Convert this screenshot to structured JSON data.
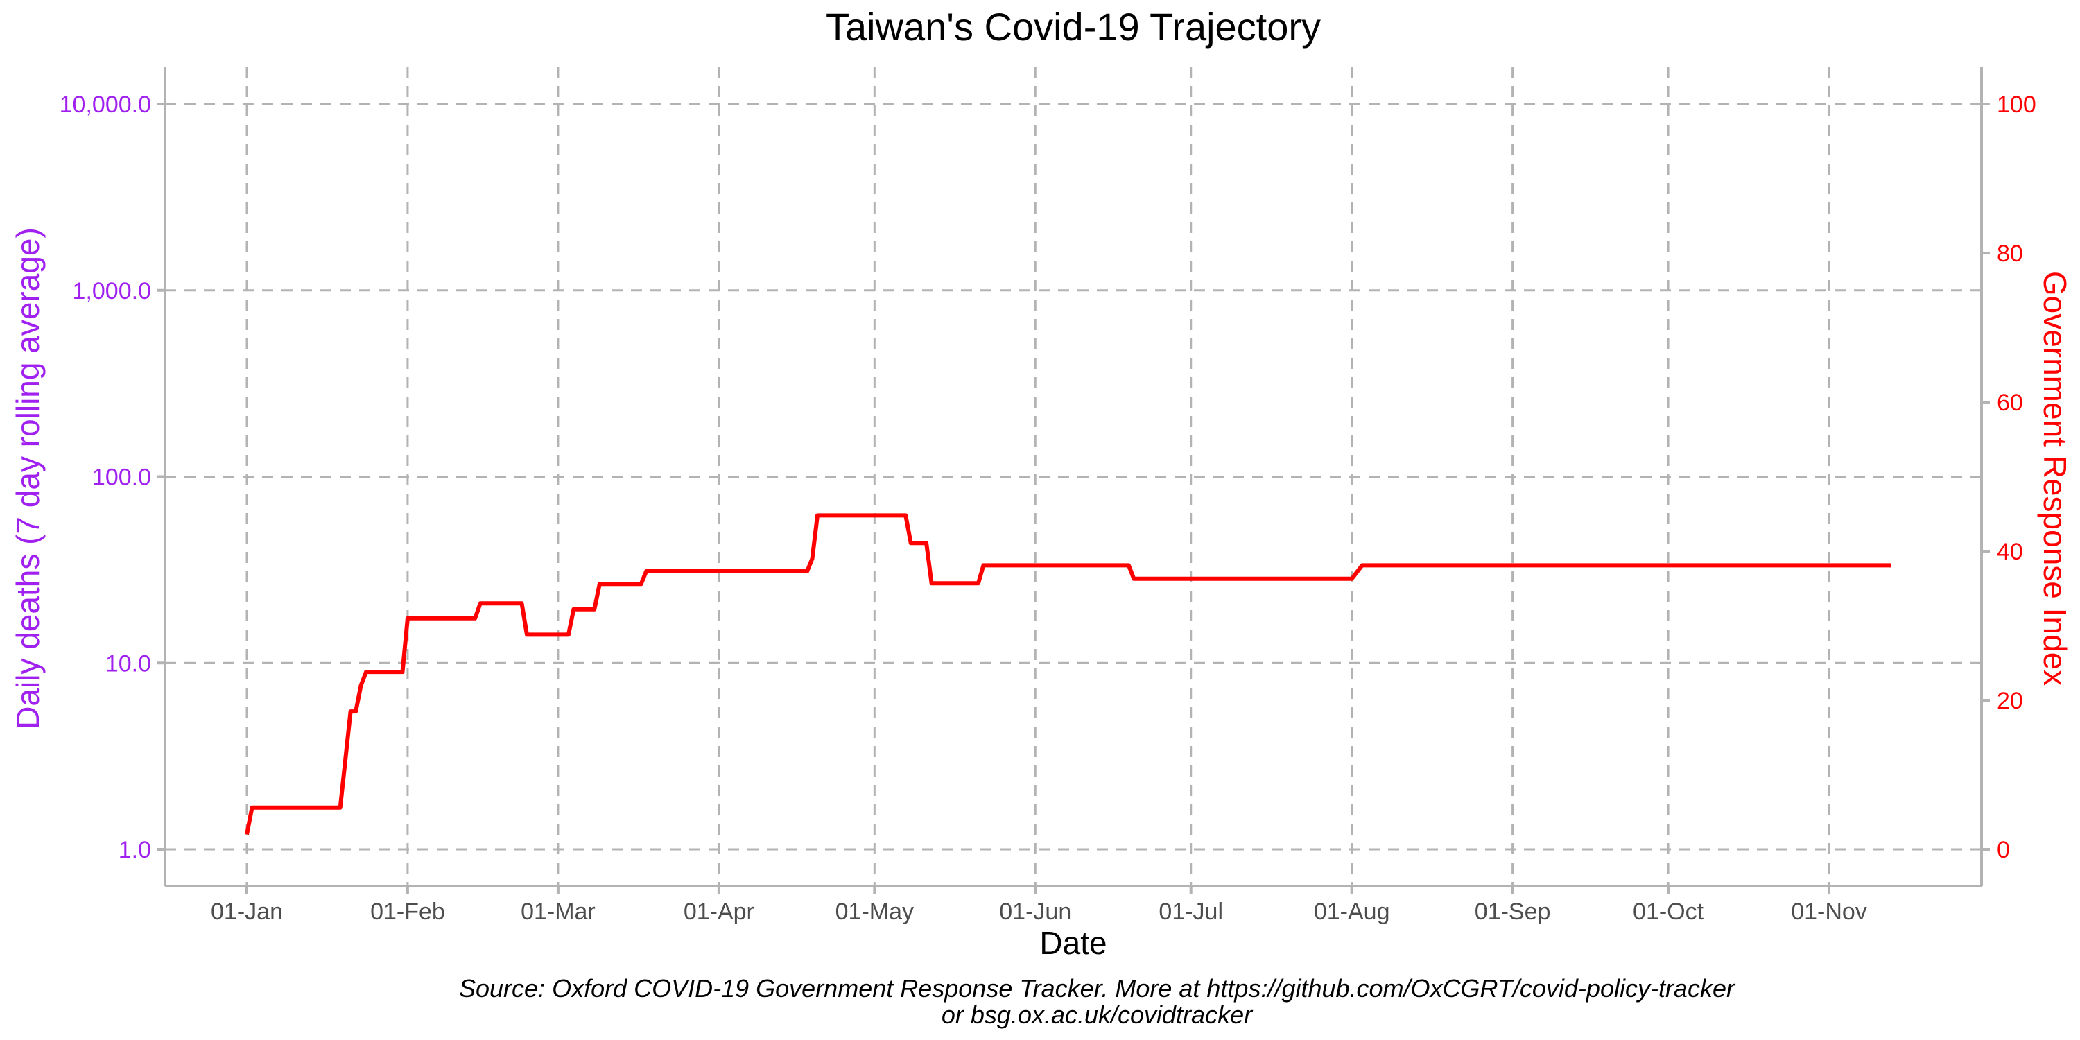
{
  "chart_data": {
    "type": "line",
    "title": "Taiwan's Covid-19 Trajectory",
    "xlabel": "Date",
    "ylabel_left": "Daily deaths (7 day rolling average)",
    "ylabel_right": "Government Response Index",
    "y_left_scale": "log10",
    "y_left_range": [
      1,
      10000
    ],
    "y_left_ticks": [
      "1.0",
      "10.0",
      "100.0",
      "1,000.0",
      "10,000.0"
    ],
    "y_right_range": [
      0,
      100
    ],
    "y_right_ticks": [
      "0",
      "20",
      "40",
      "60",
      "80",
      "100"
    ],
    "x_range": [
      "2020-01-01",
      "2020-11-15"
    ],
    "x_ticks": [
      {
        "date": "2020-01-01",
        "label": "01-Jan"
      },
      {
        "date": "2020-02-01",
        "label": "01-Feb"
      },
      {
        "date": "2020-03-01",
        "label": "01-Mar"
      },
      {
        "date": "2020-04-01",
        "label": "01-Apr"
      },
      {
        "date": "2020-05-01",
        "label": "01-May"
      },
      {
        "date": "2020-06-01",
        "label": "01-Jun"
      },
      {
        "date": "2020-07-01",
        "label": "01-Jul"
      },
      {
        "date": "2020-08-01",
        "label": "01-Aug"
      },
      {
        "date": "2020-09-01",
        "label": "01-Sep"
      },
      {
        "date": "2020-10-01",
        "label": "01-Oct"
      },
      {
        "date": "2020-11-01",
        "label": "01-Nov"
      }
    ],
    "grid": true,
    "colors": {
      "left_axis": "#a020f0",
      "right_axis": "#ff0000",
      "series": "#ff0000",
      "grid": "#b3b3b3"
    },
    "series": [
      {
        "axis": "right",
        "color": "#ff0000",
        "points": [
          [
            "2020-01-01",
            2
          ],
          [
            "2020-01-02",
            5.6
          ],
          [
            "2020-01-19",
            5.6
          ],
          [
            "2020-01-21",
            18.5
          ],
          [
            "2020-01-22",
            18.5
          ],
          [
            "2020-01-23",
            22
          ],
          [
            "2020-01-24",
            23.8
          ],
          [
            "2020-01-31",
            23.8
          ],
          [
            "2020-02-01",
            31
          ],
          [
            "2020-02-14",
            31
          ],
          [
            "2020-02-15",
            33
          ],
          [
            "2020-02-23",
            33
          ],
          [
            "2020-02-24",
            28.8
          ],
          [
            "2020-03-03",
            28.8
          ],
          [
            "2020-03-04",
            32.2
          ],
          [
            "2020-03-08",
            32.2
          ],
          [
            "2020-03-09",
            35.6
          ],
          [
            "2020-03-17",
            35.6
          ],
          [
            "2020-03-18",
            37.3
          ],
          [
            "2020-04-18",
            37.3
          ],
          [
            "2020-04-19",
            39
          ],
          [
            "2020-04-20",
            44.8
          ],
          [
            "2020-05-07",
            44.8
          ],
          [
            "2020-05-08",
            41.1
          ],
          [
            "2020-05-11",
            41.1
          ],
          [
            "2020-05-12",
            35.7
          ],
          [
            "2020-05-21",
            35.7
          ],
          [
            "2020-05-22",
            38.1
          ],
          [
            "2020-06-19",
            38.1
          ],
          [
            "2020-06-20",
            36.3
          ],
          [
            "2020-08-01",
            36.3
          ],
          [
            "2020-08-03",
            38.1
          ],
          [
            "2020-11-13",
            38.1
          ]
        ]
      }
    ],
    "caption_line1": "Source: Oxford COVID-19 Government Response Tracker. More at https://github.com/OxCGRT/covid-policy-tracker",
    "caption_line2": "or bsg.ox.ac.uk/covidtracker"
  }
}
